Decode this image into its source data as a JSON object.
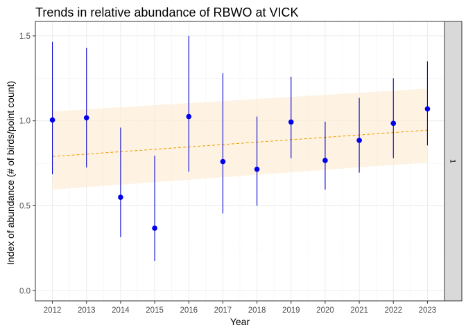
{
  "chart_data": {
    "type": "scatter",
    "title": "Trends in relative abundance of RBWO at VICK",
    "xlabel": "Year",
    "ylabel": "Index of abundance (# of birds/point count)",
    "x": [
      2012,
      2013,
      2014,
      2015,
      2016,
      2017,
      2018,
      2019,
      2020,
      2021,
      2022,
      2023
    ],
    "y": [
      1.005,
      1.018,
      0.55,
      0.368,
      1.025,
      0.76,
      0.715,
      0.993,
      0.767,
      0.885,
      0.985,
      1.07
    ],
    "lower": [
      0.685,
      0.725,
      0.315,
      0.175,
      0.7,
      0.455,
      0.5,
      0.78,
      0.595,
      0.695,
      0.78,
      0.855
    ],
    "upper": [
      1.465,
      1.43,
      0.96,
      0.795,
      1.5,
      1.28,
      1.025,
      1.26,
      0.995,
      1.135,
      1.25,
      1.35
    ],
    "trend": {
      "start": [
        2012,
        0.79
      ],
      "end": [
        2023,
        0.945
      ]
    },
    "trend_band": {
      "x": [
        2012,
        2023
      ],
      "lower": [
        0.595,
        0.755
      ],
      "upper": [
        1.055,
        1.19
      ]
    },
    "xlim": [
      2011.5,
      2023.5
    ],
    "ylim": [
      -0.06,
      1.585
    ],
    "y_ticks": [
      0.0,
      0.5,
      1.0,
      1.5
    ],
    "y_tick_labels": [
      "0.0",
      "0.5",
      "1.0",
      "1.5"
    ],
    "x_ticks": [
      2012,
      2013,
      2014,
      2015,
      2016,
      2017,
      2018,
      2019,
      2020,
      2021,
      2022,
      2023
    ],
    "x_tick_labels": [
      "2012",
      "2013",
      "2014",
      "2015",
      "2016",
      "2017",
      "2018",
      "2019",
      "2020",
      "2021",
      "2022",
      "2023"
    ],
    "facet_label": "1",
    "grid": true,
    "colors": {
      "point": "#0000ee",
      "errorbar": "#0000cc",
      "trend_line": "#f0a000",
      "trend_band": "#fdebd0",
      "strip_fill": "#d9d9d9"
    }
  }
}
